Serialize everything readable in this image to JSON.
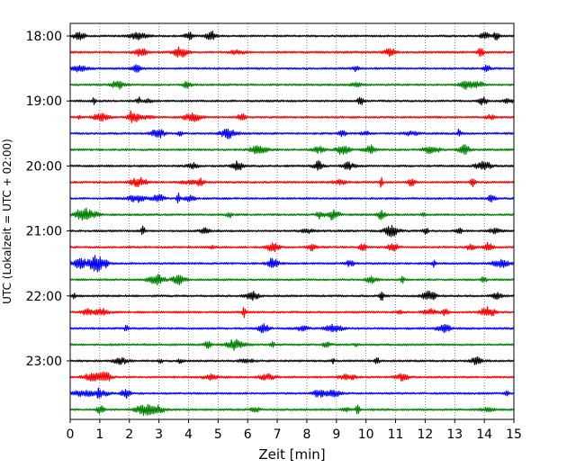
{
  "chart_data": {
    "type": "line",
    "subtype": "helicorder",
    "xlabel": "Zeit  [min]",
    "ylabel": "UTC (Lokalzeit = UTC + 02:00)",
    "xlim": [
      0,
      15
    ],
    "x_ticks": [
      0,
      1,
      2,
      3,
      4,
      5,
      6,
      7,
      8,
      9,
      10,
      11,
      12,
      13,
      14,
      15
    ],
    "y_tick_labels": [
      "18:00",
      "19:00",
      "20:00",
      "21:00",
      "22:00",
      "23:00"
    ],
    "x_grid": "dotted vertical at each minute",
    "trace_color_cycle": [
      "#000000",
      "#ff0000",
      "#0000ff",
      "#008000"
    ],
    "trace_start_times": [
      "18:00",
      "18:15",
      "18:30",
      "18:45",
      "19:00",
      "19:15",
      "19:30",
      "19:45",
      "20:00",
      "20:15",
      "20:30",
      "20:45",
      "21:00",
      "21:15",
      "21:30",
      "21:45",
      "22:00",
      "22:15",
      "22:30",
      "22:45",
      "23:00",
      "23:15",
      "23:30",
      "23:45"
    ],
    "trace_minutes": 15
  }
}
